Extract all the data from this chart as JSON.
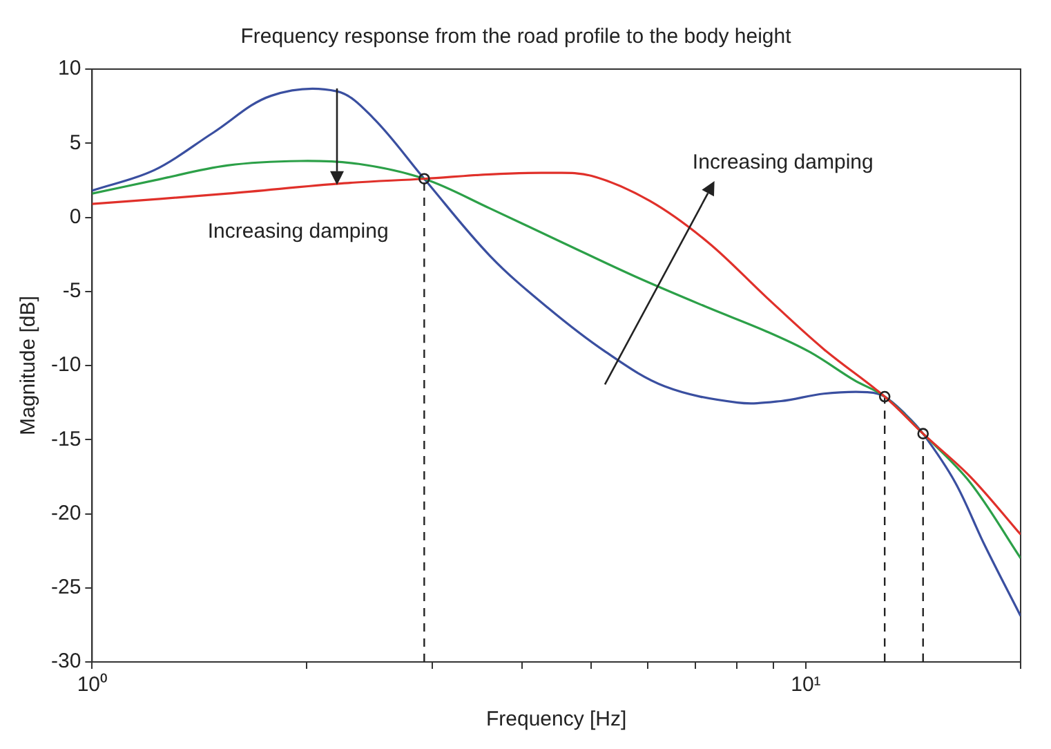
{
  "chart_data": {
    "type": "line",
    "title": "Frequency response from the road profile to the body height",
    "xlabel": "Frequency [Hz]",
    "ylabel": "Magnitude [dB]",
    "log": "x",
    "xlim": [
      1,
      20
    ],
    "ylim": [
      -30,
      10
    ],
    "xticks": [
      {
        "value": 1,
        "label": "10⁰"
      },
      {
        "value": 2,
        "label": null
      },
      {
        "value": 3,
        "label": null
      },
      {
        "value": 4,
        "label": null
      },
      {
        "value": 5,
        "label": null
      },
      {
        "value": 6,
        "label": null
      },
      {
        "value": 7,
        "label": null
      },
      {
        "value": 8,
        "label": null
      },
      {
        "value": 9,
        "label": null
      },
      {
        "value": 10,
        "label": "10¹"
      },
      {
        "value": 20,
        "label": null
      }
    ],
    "yticks": [
      -30,
      -25,
      -20,
      -15,
      -10,
      -5,
      0,
      5,
      10
    ],
    "grid": false,
    "legend": false,
    "marker": "none",
    "line_style": "solid",
    "series": [
      {
        "color": "#e0302a",
        "x": [
          1,
          1.548,
          2.255,
          2.92,
          3.61,
          4.35,
          5.01,
          6.05,
          7.3,
          8.81,
          10.6,
          12.9,
          14.6,
          17,
          20
        ],
        "values": [
          0.9,
          1.6,
          2.3,
          2.6,
          2.9,
          3.0,
          2.8,
          1.1,
          -1.7,
          -5.4,
          -8.9,
          -12.1,
          -14.6,
          -17.5,
          -21.4
        ]
      },
      {
        "color": "#2ca048",
        "x": [
          1,
          1.224,
          1.548,
          1.958,
          2.364,
          2.92,
          3.61,
          4.56,
          5.77,
          7.3,
          8.81,
          10.14,
          11.7,
          12.9,
          14.6,
          17,
          20
        ],
        "values": [
          1.6,
          2.5,
          3.5,
          3.8,
          3.6,
          2.6,
          0.6,
          -1.7,
          -4.0,
          -6.1,
          -7.7,
          -9.1,
          -11.0,
          -12.1,
          -14.6,
          -17.9,
          -23.0
        ]
      },
      {
        "color": "#3a4fa0",
        "x": [
          1,
          1.224,
          1.477,
          1.782,
          2.202,
          2.477,
          2.92,
          3.61,
          4.35,
          5.25,
          6.34,
          8.02,
          9.23,
          10.6,
          12.2,
          12.9,
          13.8,
          14.6,
          16.2,
          17.8,
          20
        ],
        "values": [
          1.8,
          3.2,
          5.7,
          8.2,
          8.5,
          6.7,
          2.6,
          -2.6,
          -6.1,
          -9.1,
          -11.4,
          -12.5,
          -12.4,
          -11.9,
          -11.8,
          -12.1,
          -13.3,
          -14.6,
          -17.9,
          -22.1,
          -26.9
        ]
      },
      {
        "color": "#222222",
        "line_style": "dashed",
        "x": [
          2.92,
          2.92
        ],
        "values": [
          -30,
          2.6
        ]
      },
      {
        "color": "#222222",
        "line_style": "dashed",
        "x": [
          12.9,
          12.9
        ],
        "values": [
          -30,
          -12.1
        ]
      },
      {
        "color": "#222222",
        "line_style": "dashed",
        "x": [
          14.6,
          14.6
        ],
        "values": [
          -30,
          -14.6
        ]
      },
      {
        "type": "scatter",
        "color": "#222222",
        "marker": "circle",
        "x": [
          2.92,
          12.9,
          14.6
        ],
        "values": [
          2.6,
          -12.1,
          -14.6
        ]
      }
    ],
    "annotations": [
      {
        "text": "Increasing damping",
        "x": 2.202,
        "y": 2.2
      },
      "Increasing damping"
    ]
  }
}
